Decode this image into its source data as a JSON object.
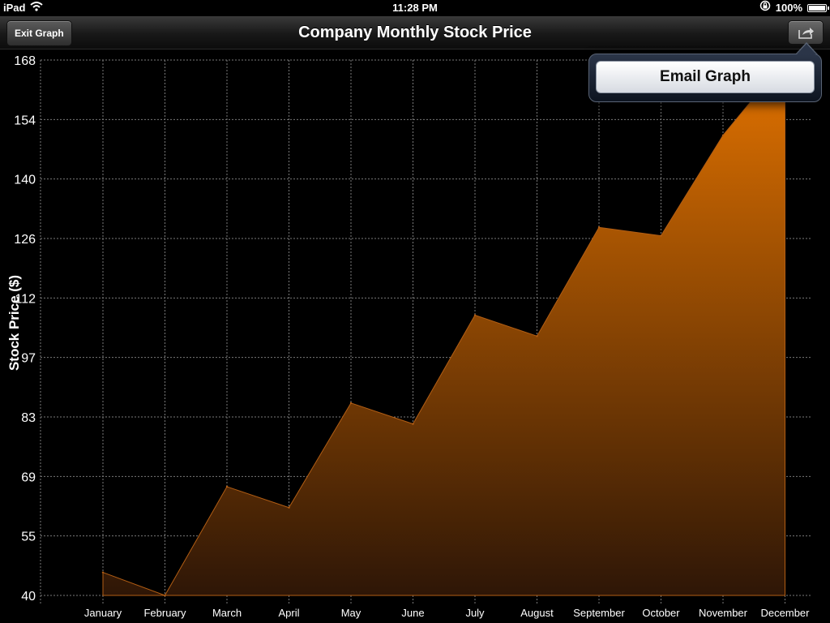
{
  "status_bar": {
    "device": "iPad",
    "time": "11:28 PM",
    "battery": "100%",
    "battery_level": 1.0,
    "icons": [
      "wifi-icon",
      "rotation-lock-icon",
      "battery-icon"
    ]
  },
  "nav": {
    "title": "Company Monthly Stock Price",
    "exit_label": "Exit Graph",
    "share_icon": "share-icon"
  },
  "popover": {
    "email_label": "Email Graph"
  },
  "colors": {
    "fill_top": "#e37300",
    "fill_bottom": "#2e1606",
    "stroke": "#b35e14",
    "grid": "#7a7a7a"
  },
  "chart_data": {
    "type": "area",
    "title": "Company Monthly Stock Price",
    "xlabel": "",
    "ylabel": "Stock Price ($)",
    "categories": [
      "January",
      "February",
      "March",
      "April",
      "May",
      "June",
      "July",
      "August",
      "September",
      "October",
      "November",
      "December"
    ],
    "values": [
      45.5,
      40,
      66,
      61,
      86,
      81,
      107,
      102,
      128,
      126,
      150,
      168
    ],
    "y_ticks": [
      "168",
      "154",
      "140",
      "126",
      "112",
      "97",
      "83",
      "69",
      "55",
      "40"
    ],
    "ylim": [
      40,
      168
    ],
    "grid": true,
    "legend": "none"
  }
}
